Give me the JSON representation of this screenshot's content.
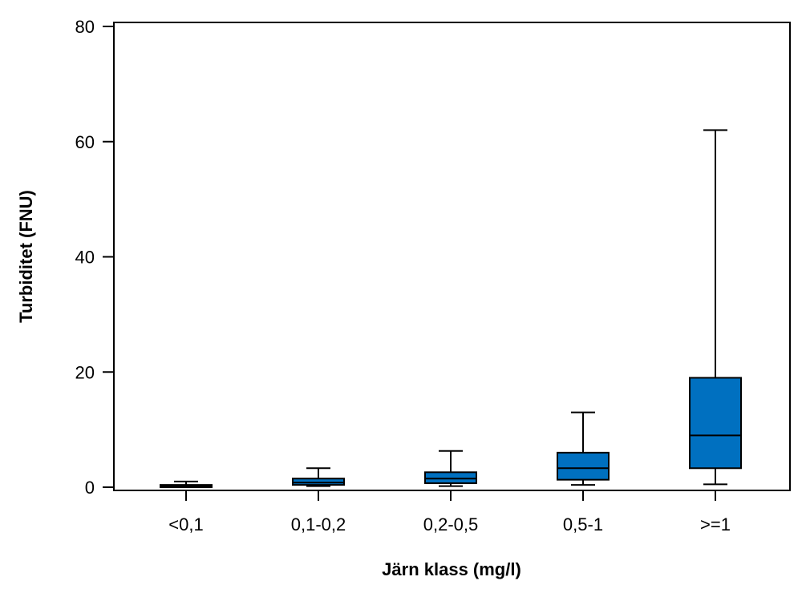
{
  "chart_data": {
    "type": "boxplot",
    "title": "",
    "xlabel": "Järn klass (mg/l)",
    "ylabel": "Turbiditet (FNU)",
    "ylim": [
      0,
      80
    ],
    "yticks": [
      0,
      20,
      40,
      60,
      80
    ],
    "categories": [
      "<0,1",
      "0,1-0,2",
      "0,2-0,5",
      "0,5-1",
      ">=1"
    ],
    "boxes": [
      {
        "category": "<0,1",
        "min": 0.0,
        "q1": 0.0,
        "median": 0.2,
        "q3": 0.4,
        "max": 1.0
      },
      {
        "category": "0,1-0,2",
        "min": 0.2,
        "q1": 0.4,
        "median": 0.8,
        "q3": 1.5,
        "max": 3.3
      },
      {
        "category": "0,2-0,5",
        "min": 0.2,
        "q1": 0.7,
        "median": 1.5,
        "q3": 2.6,
        "max": 6.3
      },
      {
        "category": "0,5-1",
        "min": 0.4,
        "q1": 1.3,
        "median": 3.3,
        "q3": 6.0,
        "max": 13.0
      },
      {
        "category": ">=1",
        "min": 0.5,
        "q1": 3.3,
        "median": 9.0,
        "q3": 19.0,
        "max": 62.0
      }
    ],
    "box_color": "#0070c0",
    "line_color": "#000000",
    "grid": false,
    "legend": "none"
  }
}
